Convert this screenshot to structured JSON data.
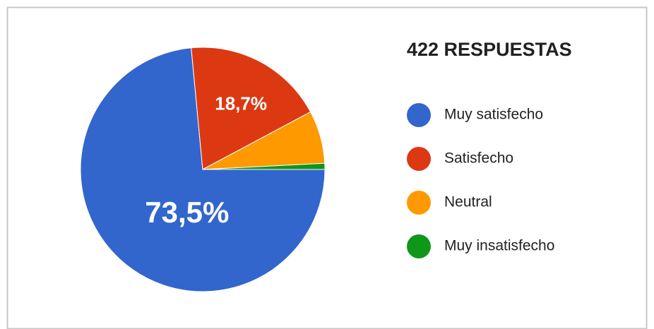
{
  "chart_data": {
    "type": "pie",
    "title": "422 RESPUESTAS",
    "categories": [
      "Muy satisfecho",
      "Satisfecho",
      "Neutral",
      "Muy insatisfecho"
    ],
    "values": [
      73.5,
      18.7,
      7.0,
      0.8
    ],
    "value_labels": [
      "73,5%",
      "18,7%",
      null,
      null
    ],
    "colors": [
      "#3366cc",
      "#dc3912",
      "#ff9900",
      "#109618"
    ],
    "legend": "right"
  }
}
